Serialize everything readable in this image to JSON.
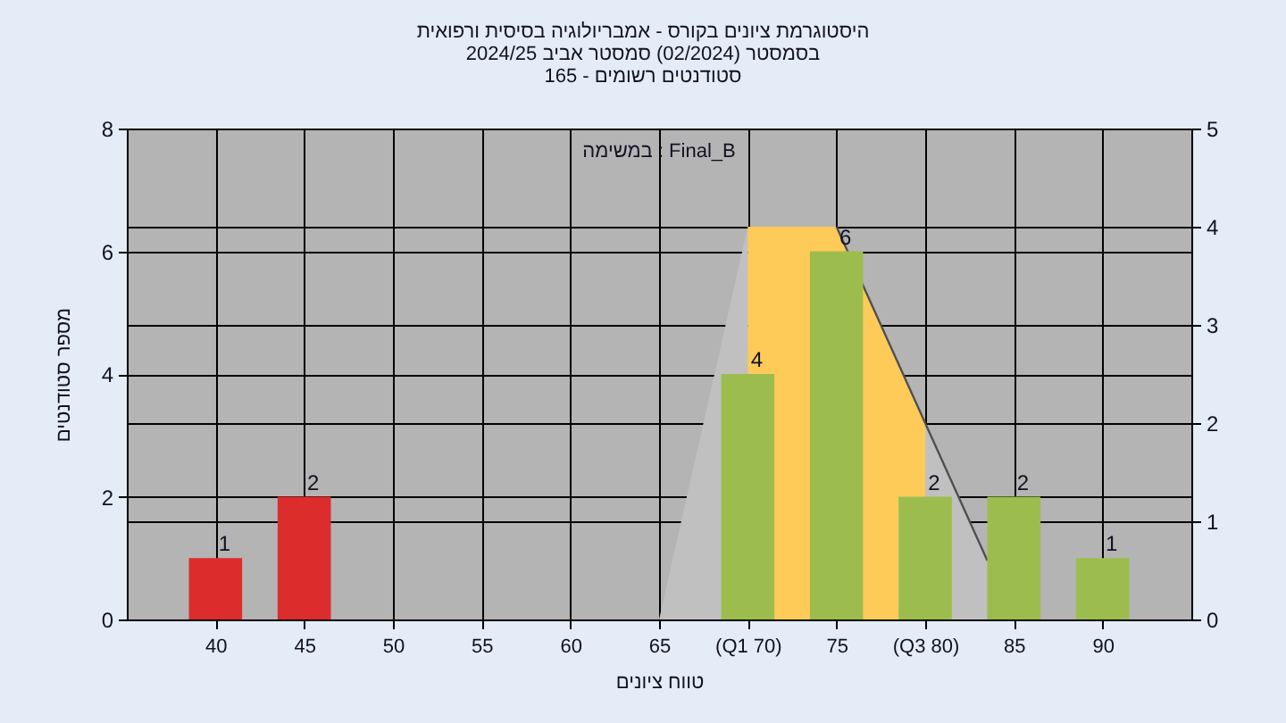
{
  "chart_data": {
    "type": "bar",
    "title": "היסטוגרמת ציונים בקורס - אמבריולוגיה בסיסית ורפואית\nבסמסטר  (02/2024)  סמסטר אביב 2024/25\nסטודנטים רשומים - 165",
    "xlabel": "טווח ציונים",
    "ylabel": "מספר סטודנטים",
    "xlim": [
      35,
      95
    ],
    "xticks": [
      40,
      45,
      50,
      55,
      60,
      65,
      {
        "value": 70,
        "label": "(Q1 70)"
      },
      75,
      {
        "value": 80,
        "label": "(Q3 80)"
      },
      85,
      90
    ],
    "ylim": [
      0,
      8
    ],
    "yticks": [
      0,
      2,
      4,
      6,
      8
    ],
    "y2lim": [
      0,
      5
    ],
    "y2ticks": [
      0,
      1,
      2,
      3,
      4,
      5
    ],
    "grid": true,
    "series": [
      {
        "type": "area",
        "axis": "y2",
        "x": [
          65,
          70
        ],
        "values": [
          0,
          4
        ],
        "color": "#c0c0c0"
      },
      {
        "type": "area",
        "axis": "y2",
        "x": [
          70,
          75,
          80
        ],
        "values": [
          4,
          4,
          2
        ],
        "color": "#ffcb58"
      },
      {
        "type": "area",
        "axis": "y2",
        "x": [
          80,
          83.5
        ],
        "values": [
          2,
          0.6
        ],
        "color": "#c0c0c0"
      },
      {
        "type": "line",
        "axis": "y2",
        "x": [
          75,
          80,
          83.5
        ],
        "values": [
          4,
          2,
          0.6
        ],
        "color": "#505050"
      },
      {
        "x": [
          40,
          45,
          70,
          75,
          80,
          85,
          90
        ],
        "values": [
          1,
          2,
          4,
          6,
          2,
          2,
          1
        ],
        "colors": [
          "#dd2c2c",
          "#dd2c2c",
          "#9cbd4e",
          "#9cbd4e",
          "#9cbd4e",
          "#9cbd4e",
          "#9cbd4e"
        ],
        "value_labels": [
          "1",
          "2",
          "4",
          "6",
          "2",
          "2",
          "1"
        ]
      }
    ],
    "annotations": [
      "במשימה : Final_B"
    ]
  }
}
